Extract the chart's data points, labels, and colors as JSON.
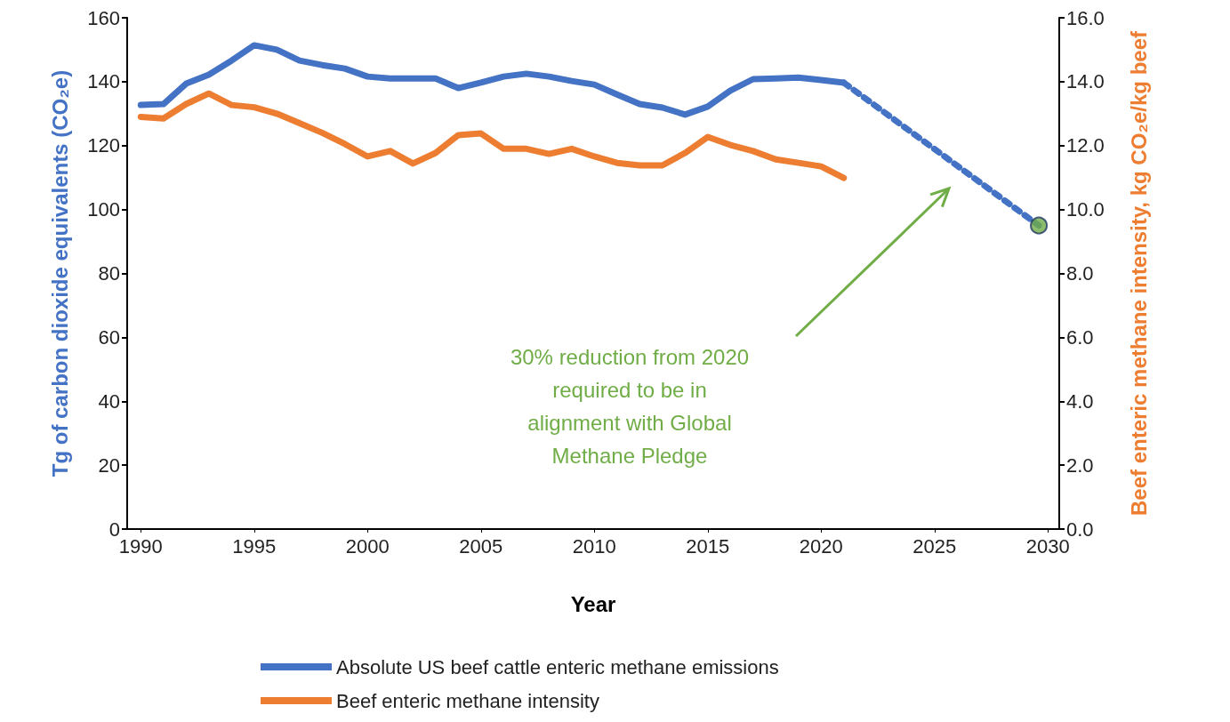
{
  "chart_data": {
    "type": "line",
    "xlabel": "Year",
    "ylabel": "Tg of carbon dioxide equivalents (CO₂e)",
    "y2label": "Beef enteric methane intensity, kg CO₂e/kg beef",
    "xlim": [
      1989.4,
      2030.5
    ],
    "xticks": [
      1990,
      1995,
      2000,
      2005,
      2010,
      2015,
      2020,
      2025,
      2030
    ],
    "ylim": [
      0,
      160
    ],
    "yticks": [
      0,
      20,
      40,
      60,
      80,
      100,
      120,
      140,
      160
    ],
    "y2lim": [
      0,
      16
    ],
    "y2ticks": [
      {
        "value": 0,
        "label": "0.0"
      },
      {
        "value": 2,
        "label": "2.0"
      },
      {
        "value": 4,
        "label": "4.0"
      },
      {
        "value": 6,
        "label": "6.0"
      },
      {
        "value": 8,
        "label": "8.0"
      },
      {
        "value": 10,
        "label": "10.0"
      },
      {
        "value": 12,
        "label": "12.0"
      },
      {
        "value": 14,
        "label": "14.0"
      },
      {
        "value": 16,
        "label": "16.0"
      }
    ],
    "grid": false,
    "legend": "bottom",
    "marker": "none",
    "line_style": "solid",
    "x": [
      1990,
      1991,
      1992,
      1993,
      1994,
      1995,
      1996,
      1997,
      1998,
      1999,
      2000,
      2001,
      2002,
      2003,
      2004,
      2005,
      2006,
      2007,
      2008,
      2009,
      2010,
      2011,
      2012,
      2013,
      2014,
      2015,
      2016,
      2017,
      2018,
      2019,
      2020,
      2021,
      2029.6
    ],
    "series": [
      {
        "name": "Absolute US beef cattle enteric methane emissions",
        "color": "#4472c4",
        "values": [
          132.7,
          133,
          139.4,
          142.2,
          146.6,
          151.4,
          150,
          146.6,
          145.2,
          144.1,
          141.6,
          141,
          141,
          141,
          138,
          139.7,
          141.6,
          142.5,
          141.6,
          140.2,
          139.1,
          136,
          133,
          131.9,
          129.7,
          132.2,
          137.2,
          140.8,
          141,
          141.3,
          140.5,
          139.7,
          null
        ]
      },
      {
        "name": "Beef enteric methane intensity",
        "color": "#ed7d31",
        "axis": "y2",
        "values": [
          12.9,
          12.85,
          13.3,
          13.63,
          13.27,
          13.2,
          13,
          12.7,
          12.4,
          12.05,
          11.66,
          11.83,
          11.44,
          11.77,
          12.33,
          12.38,
          11.9,
          11.9,
          11.74,
          11.9,
          11.66,
          11.46,
          11.38,
          11.38,
          11.77,
          12.27,
          12.02,
          11.83,
          11.57,
          11.46,
          11.35,
          10.99,
          null
        ]
      },
      {
        "color": "#4472c4",
        "line_style": "dotted",
        "values": [
          null,
          null,
          null,
          null,
          null,
          null,
          null,
          null,
          null,
          null,
          null,
          null,
          null,
          null,
          null,
          null,
          null,
          null,
          null,
          null,
          null,
          null,
          null,
          null,
          null,
          null,
          null,
          null,
          null,
          null,
          null,
          139.7,
          95
        ]
      },
      {
        "type": "scatter",
        "color": "#70ad47",
        "marker": "circle",
        "values": [
          null,
          null,
          null,
          null,
          null,
          null,
          null,
          null,
          null,
          null,
          null,
          null,
          null,
          null,
          null,
          null,
          null,
          null,
          null,
          null,
          null,
          null,
          null,
          null,
          null,
          null,
          null,
          null,
          null,
          null,
          null,
          null,
          95
        ]
      }
    ],
    "annotations": [
      "30% reduction from 2020\nrequired to be in\nalignment with Global\nMethane Pledge"
    ]
  }
}
